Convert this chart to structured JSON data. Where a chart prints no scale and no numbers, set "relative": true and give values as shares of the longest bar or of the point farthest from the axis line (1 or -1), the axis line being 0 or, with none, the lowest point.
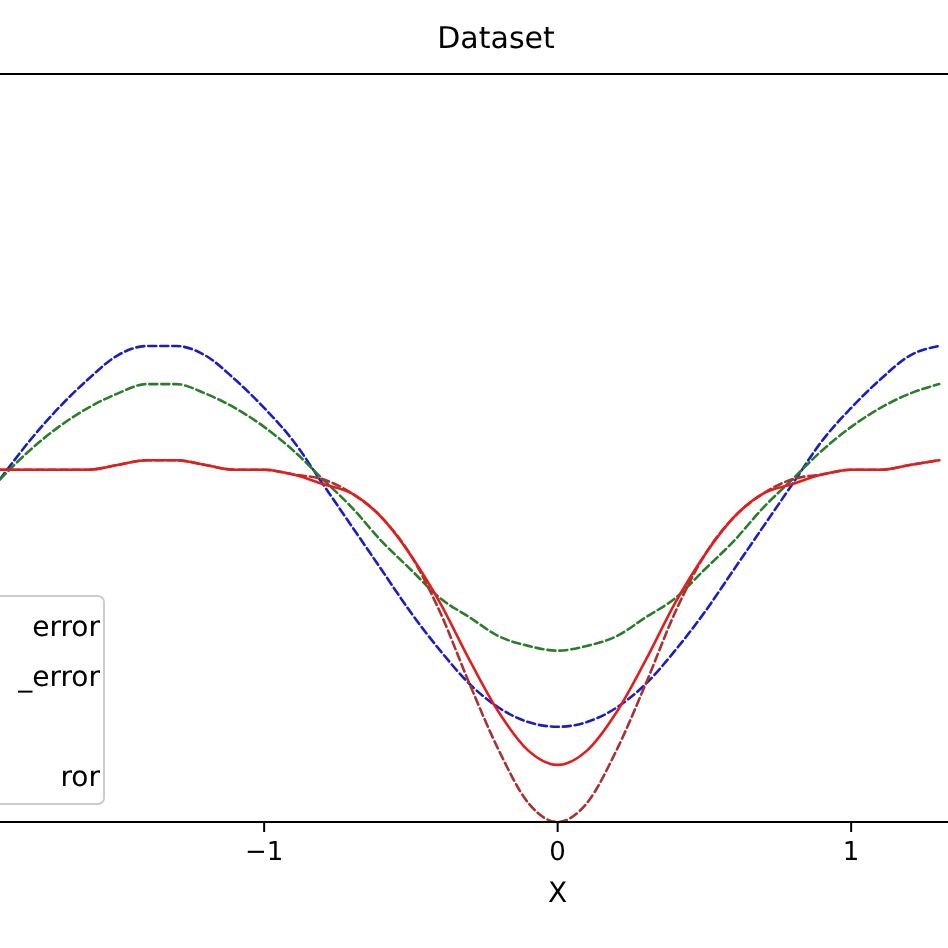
{
  "chart_data": {
    "type": "line",
    "title": "Dataset",
    "xlabel": "X",
    "relative": true,
    "xlim": [
      -1.9,
      1.33
    ],
    "xticks": [
      {
        "value": -1,
        "label": "−1"
      },
      0,
      1
    ],
    "line_style": "dashed",
    "grid": false,
    "x": [
      -1.9,
      -1.8,
      -1.7,
      -1.6,
      -1.5,
      -1.4,
      -1.3,
      -1.2,
      -1.1,
      -1.0,
      -0.9,
      -0.8,
      -0.7,
      -0.6,
      -0.5,
      -0.4,
      -0.3,
      -0.2,
      -0.1,
      0,
      0.1,
      0.2,
      0.3,
      0.4,
      0.5,
      0.6,
      0.7,
      0.8,
      0.9,
      1.0,
      1.1,
      1.2,
      1.3
    ],
    "series": [
      {
        "color": "#1c1cc4",
        "values": [
          0.72,
          0.8,
          0.87,
          0.93,
          0.98,
          1.0,
          1.0,
          0.98,
          0.93,
          0.87,
          0.8,
          0.71,
          0.62,
          0.53,
          0.44,
          0.36,
          0.29,
          0.24,
          0.21,
          0.2,
          0.21,
          0.24,
          0.29,
          0.36,
          0.44,
          0.53,
          0.62,
          0.71,
          0.8,
          0.87,
          0.93,
          0.98,
          1.0
        ]
      },
      {
        "color": "#2a7d2a",
        "values": [
          0.72,
          0.78,
          0.83,
          0.87,
          0.9,
          0.92,
          0.92,
          0.9,
          0.87,
          0.83,
          0.78,
          0.72,
          0.66,
          0.59,
          0.53,
          0.47,
          0.43,
          0.39,
          0.37,
          0.36,
          0.37,
          0.39,
          0.43,
          0.47,
          0.53,
          0.59,
          0.66,
          0.72,
          0.78,
          0.83,
          0.87,
          0.9,
          0.92
        ]
      },
      {
        "color": "#a83232",
        "values": [
          0.74,
          0.74,
          0.74,
          0.74,
          0.75,
          0.76,
          0.76,
          0.75,
          0.74,
          0.74,
          0.73,
          0.72,
          0.69,
          0.64,
          0.56,
          0.44,
          0.29,
          0.15,
          0.04,
          0,
          0.04,
          0.15,
          0.29,
          0.44,
          0.56,
          0.64,
          0.69,
          0.72,
          0.73,
          0.74,
          0.74,
          0.75,
          0.76
        ]
      },
      {
        "color": "#e01e1e",
        "line_style": "solid",
        "values": [
          0.74,
          0.74,
          0.74,
          0.74,
          0.75,
          0.76,
          0.76,
          0.75,
          0.74,
          0.74,
          0.73,
          0.71,
          0.69,
          0.64,
          0.56,
          0.46,
          0.34,
          0.23,
          0.15,
          0.12,
          0.15,
          0.23,
          0.34,
          0.46,
          0.56,
          0.64,
          0.69,
          0.71,
          0.73,
          0.74,
          0.74,
          0.75,
          0.76
        ]
      }
    ],
    "annotations": [
      "error",
      "_error",
      "ror"
    ]
  }
}
